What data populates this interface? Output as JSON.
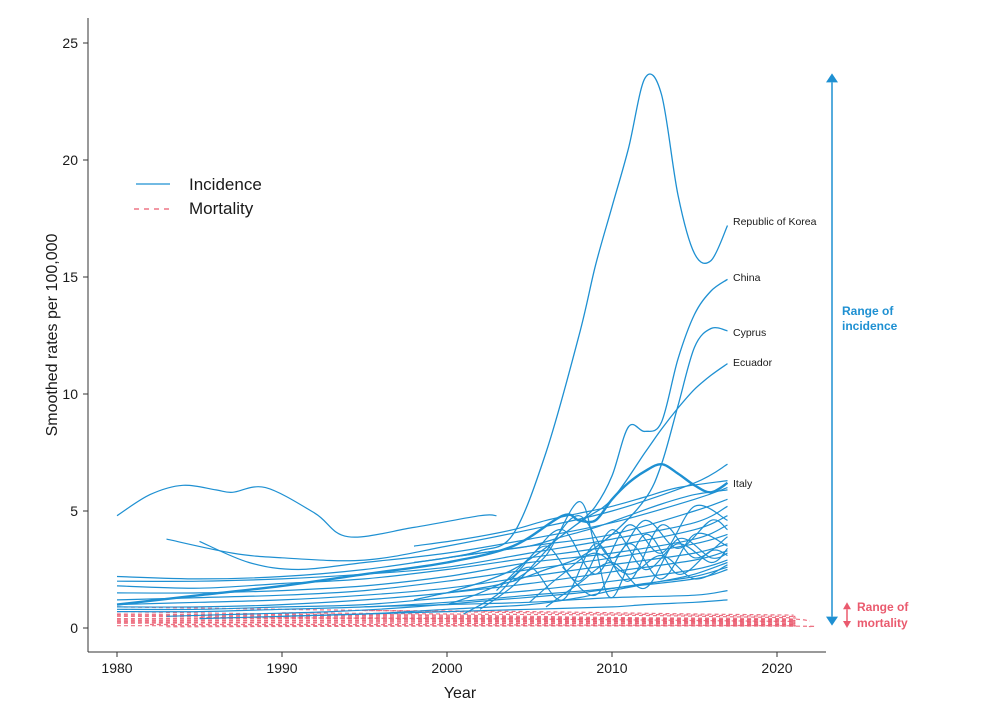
{
  "chart_data": {
    "type": "line",
    "xlabel": "Year",
    "ylabel": "Smoothed rates per 100,000",
    "xlim": [
      1979,
      2023
    ],
    "ylim": [
      -1,
      26
    ],
    "xticks": [
      1980,
      1990,
      2000,
      2010,
      2020
    ],
    "yticks": [
      0,
      5,
      10,
      15,
      20,
      25
    ],
    "legend": [
      {
        "label": "Incidence",
        "style": "solid",
        "color": "#1e90d2"
      },
      {
        "label": "Mortality",
        "style": "dashed",
        "color": "#ea5a6e"
      }
    ],
    "incidence_color": "#1e90d2",
    "mortality_color": "#ea5a6e",
    "labeled_series": [
      {
        "name": "Republic of Korea",
        "x": [
          1998,
          2000,
          2002,
          2004,
          2006,
          2008,
          2009,
          2010,
          2011,
          2012,
          2013,
          2014,
          2015,
          2016,
          2017
        ],
        "y": [
          2.8,
          3.0,
          3.3,
          4.0,
          7.5,
          12.5,
          15.5,
          18.0,
          20.5,
          23.5,
          22.8,
          18.5,
          16.0,
          15.7,
          17.2
        ]
      },
      {
        "name": "China",
        "x": [
          2008,
          2009,
          2010,
          2011,
          2012,
          2013,
          2014,
          2015,
          2016,
          2017
        ],
        "y": [
          4.5,
          5.2,
          6.5,
          8.6,
          8.4,
          8.8,
          11.5,
          13.4,
          14.4,
          14.9
        ]
      },
      {
        "name": "Cyprus",
        "x": [
          1998,
          2000,
          2002,
          2004,
          2006,
          2008,
          2010,
          2012,
          2013,
          2014,
          2015,
          2016,
          2017
        ],
        "y": [
          1.2,
          1.5,
          1.7,
          2.0,
          2.5,
          3.0,
          4.0,
          5.5,
          7.0,
          9.5,
          12.0,
          12.8,
          12.7
        ]
      },
      {
        "name": "Ecuador",
        "x": [
          2000,
          2004,
          2008,
          2010,
          2012,
          2013,
          2014,
          2015,
          2016,
          2017
        ],
        "y": [
          1.5,
          2.5,
          4.5,
          5.5,
          7.5,
          8.5,
          9.4,
          10.2,
          10.8,
          11.3
        ]
      },
      {
        "name": "Italy",
        "x": [
          1980,
          1985,
          1990,
          1995,
          2000,
          2004,
          2007,
          2008,
          2009,
          2010,
          2011,
          2012,
          2013,
          2014,
          2015,
          2016,
          2017
        ],
        "y": [
          1.0,
          1.4,
          1.8,
          2.3,
          2.8,
          3.5,
          4.8,
          4.6,
          4.6,
          5.5,
          6.2,
          6.7,
          7.0,
          6.6,
          6.1,
          5.8,
          6.2
        ]
      }
    ],
    "other_incidence_series": [
      {
        "x": [
          1980,
          1982,
          1984,
          1986,
          1987,
          1989,
          1992,
          1994,
          1998,
          2002,
          2003
        ],
        "y": [
          4.8,
          5.7,
          6.1,
          5.9,
          5.8,
          6.0,
          4.9,
          3.9,
          4.3,
          4.8,
          4.8
        ]
      },
      {
        "x": [
          1983,
          1987,
          1990,
          1995,
          2000,
          2005,
          2010,
          2015,
          2017
        ],
        "y": [
          3.8,
          3.2,
          3.0,
          2.9,
          3.5,
          4.2,
          5.0,
          6.2,
          7.0
        ]
      },
      {
        "x": [
          1985,
          1988,
          1991,
          1995,
          2000,
          2005,
          2010,
          2015,
          2017
        ],
        "y": [
          3.7,
          2.8,
          2.5,
          2.8,
          3.2,
          3.8,
          4.5,
          5.5,
          6.0
        ]
      },
      {
        "x": [
          1980,
          1985,
          1990,
          1995,
          2000,
          2005,
          2010,
          2015,
          2017
        ],
        "y": [
          2.2,
          2.1,
          2.2,
          2.5,
          3.0,
          3.5,
          4.0,
          5.0,
          5.5
        ]
      },
      {
        "x": [
          1980,
          1985,
          1990,
          1995,
          2000,
          2005,
          2010,
          2015,
          2017
        ],
        "y": [
          2.0,
          2.0,
          2.1,
          2.3,
          2.6,
          3.2,
          3.8,
          4.5,
          5.2
        ]
      },
      {
        "x": [
          1980,
          1985,
          1990,
          1995,
          2000,
          2005,
          2010,
          2015,
          2017
        ],
        "y": [
          1.8,
          1.7,
          1.9,
          2.1,
          2.5,
          3.0,
          3.5,
          4.2,
          4.8
        ]
      },
      {
        "x": [
          1980,
          1985,
          1990,
          1995,
          2000,
          2005,
          2010,
          2015,
          2017
        ],
        "y": [
          1.5,
          1.5,
          1.6,
          1.8,
          2.2,
          2.8,
          3.2,
          3.8,
          4.4
        ]
      },
      {
        "x": [
          1980,
          1985,
          1990,
          1995,
          2000,
          2005,
          2010,
          2015,
          2017
        ],
        "y": [
          1.2,
          1.3,
          1.4,
          1.6,
          2.0,
          2.5,
          3.0,
          3.6,
          4.0
        ]
      },
      {
        "x": [
          1980,
          1985,
          1990,
          1995,
          2000,
          2005,
          2010,
          2015,
          2017
        ],
        "y": [
          1.0,
          1.1,
          1.2,
          1.4,
          1.7,
          2.2,
          2.7,
          3.2,
          3.6
        ]
      },
      {
        "x": [
          1980,
          1985,
          1990,
          1995,
          2000,
          2005,
          2010,
          2015,
          2017
        ],
        "y": [
          0.9,
          0.9,
          1.0,
          1.2,
          1.5,
          1.9,
          2.4,
          2.9,
          3.3
        ]
      },
      {
        "x": [
          1980,
          1985,
          1990,
          1995,
          2000,
          2005,
          2010,
          2015,
          2017
        ],
        "y": [
          0.8,
          0.8,
          0.9,
          1.0,
          1.3,
          1.6,
          2.0,
          2.5,
          2.9
        ]
      },
      {
        "x": [
          1980,
          1985,
          1990,
          1995,
          2000,
          2005,
          2010,
          2015,
          2017
        ],
        "y": [
          0.7,
          0.7,
          0.8,
          0.9,
          1.1,
          1.4,
          1.7,
          2.1,
          2.5
        ]
      },
      {
        "x": [
          1983,
          1988,
          1993,
          1998,
          2003,
          2008,
          2012,
          2015,
          2017
        ],
        "y": [
          0.5,
          0.6,
          0.7,
          0.9,
          1.2,
          1.5,
          1.9,
          2.2,
          2.6
        ]
      },
      {
        "x": [
          1985,
          1990,
          1995,
          2000,
          2005,
          2008,
          2010,
          2013,
          2015,
          2017
        ],
        "y": [
          0.4,
          0.5,
          0.6,
          0.8,
          1.0,
          1.3,
          1.6,
          2.0,
          2.3,
          2.8
        ]
      },
      {
        "x": [
          1998,
          2001,
          2004,
          2006,
          2008,
          2010,
          2012,
          2014,
          2017
        ],
        "y": [
          3.5,
          3.8,
          4.2,
          4.6,
          4.9,
          5.2,
          5.6,
          6.0,
          6.3
        ]
      },
      {
        "x": [
          2000,
          2003,
          2005,
          2007,
          2009,
          2011,
          2013,
          2015,
          2017
        ],
        "y": [
          3.0,
          3.3,
          3.5,
          3.9,
          4.3,
          4.8,
          5.3,
          5.7,
          5.9
        ]
      },
      {
        "x": [
          2000,
          2002,
          2004,
          2006,
          2008,
          2010,
          2012,
          2014,
          2016,
          2017
        ],
        "y": [
          1.0,
          1.5,
          2.2,
          3.5,
          2.0,
          4.2,
          2.5,
          3.6,
          2.8,
          3.4
        ]
      },
      {
        "x": [
          2001,
          2003,
          2005,
          2007,
          2009,
          2011,
          2013,
          2015,
          2017
        ],
        "y": [
          0.6,
          1.4,
          2.6,
          1.2,
          3.6,
          2.0,
          4.4,
          3.0,
          3.9
        ]
      },
      {
        "x": [
          2002,
          2004,
          2006,
          2008,
          2010,
          2012,
          2014,
          2016,
          2017
        ],
        "y": [
          0.8,
          1.8,
          3.3,
          4.8,
          3.0,
          4.6,
          3.4,
          4.6,
          4.2
        ]
      },
      {
        "x": [
          2003,
          2005,
          2007,
          2009,
          2011,
          2013,
          2015,
          2017
        ],
        "y": [
          1.6,
          3.0,
          4.2,
          2.3,
          4.4,
          3.2,
          5.2,
          4.6
        ]
      },
      {
        "x": [
          2004,
          2006,
          2008,
          2009,
          2010,
          2012,
          2014,
          2016,
          2017
        ],
        "y": [
          2.0,
          3.1,
          5.4,
          3.4,
          1.3,
          4.0,
          2.3,
          3.3,
          3.1
        ]
      },
      {
        "x": [
          2005,
          2007,
          2009,
          2011,
          2013,
          2015,
          2017
        ],
        "y": [
          1.1,
          2.3,
          3.2,
          2.3,
          3.1,
          2.1,
          2.7
        ]
      },
      {
        "x": [
          2006,
          2008,
          2010,
          2012,
          2014,
          2016,
          2017
        ],
        "y": [
          0.9,
          1.9,
          2.8,
          1.7,
          3.8,
          3.0,
          3.2
        ]
      },
      {
        "x": [
          2007,
          2009,
          2011,
          2013,
          2015,
          2017
        ],
        "y": [
          2.6,
          1.4,
          3.6,
          2.1,
          4.0,
          3.5
        ]
      },
      {
        "x": [
          1990,
          1995,
          2000,
          2005,
          2010,
          2012,
          2015,
          2017
        ],
        "y": [
          0.5,
          0.6,
          0.7,
          0.8,
          0.9,
          1.0,
          1.1,
          1.2
        ]
      },
      {
        "x": [
          1995,
          2000,
          2005,
          2010,
          2015,
          2017
        ],
        "y": [
          0.9,
          1.0,
          1.1,
          1.3,
          1.4,
          1.6
        ]
      }
    ],
    "mortality_series": [
      {
        "x": [
          1980,
          1990,
          2000,
          2010,
          2020,
          2021
        ],
        "y": [
          0.9,
          0.8,
          0.7,
          0.6,
          0.5,
          0.5
        ]
      },
      {
        "x": [
          1980,
          1990,
          2000,
          2010,
          2020,
          2022
        ],
        "y": [
          0.7,
          0.6,
          0.55,
          0.45,
          0.4,
          0.3
        ]
      },
      {
        "x": [
          1980,
          1990,
          2000,
          2010,
          2020,
          2021
        ],
        "y": [
          0.6,
          0.55,
          0.5,
          0.4,
          0.35,
          0.3
        ]
      },
      {
        "x": [
          1980,
          1990,
          2000,
          2010,
          2020,
          2021
        ],
        "y": [
          0.5,
          0.45,
          0.4,
          0.35,
          0.3,
          0.25
        ]
      },
      {
        "x": [
          1980,
          1990,
          2000,
          2010,
          2020,
          2021
        ],
        "y": [
          0.4,
          0.4,
          0.35,
          0.3,
          0.25,
          0.2
        ]
      },
      {
        "x": [
          1980,
          1990,
          2000,
          2010,
          2020,
          2021
        ],
        "y": [
          0.3,
          0.3,
          0.28,
          0.25,
          0.2,
          0.18
        ]
      },
      {
        "x": [
          1980,
          1990,
          2000,
          2010,
          2020,
          2021
        ],
        "y": [
          0.2,
          0.22,
          0.2,
          0.18,
          0.15,
          0.12
        ]
      },
      {
        "x": [
          1982,
          1990,
          2000,
          2010,
          2020,
          2021
        ],
        "y": [
          0.15,
          0.15,
          0.14,
          0.12,
          0.1,
          0.08
        ]
      },
      {
        "x": [
          1980,
          1990,
          2000,
          2010,
          2020,
          2021
        ],
        "y": [
          0.55,
          0.5,
          0.45,
          0.4,
          0.35,
          0.32
        ]
      },
      {
        "x": [
          1985,
          1995,
          2005,
          2015,
          2021
        ],
        "y": [
          0.45,
          0.42,
          0.38,
          0.32,
          0.28
        ]
      },
      {
        "x": [
          1980,
          1990,
          2000,
          2010,
          2020
        ],
        "y": [
          0.35,
          0.33,
          0.3,
          0.28,
          0.25
        ]
      },
      {
        "x": [
          1980,
          1995,
          2010,
          2021
        ],
        "y": [
          0.25,
          0.22,
          0.2,
          0.15
        ]
      },
      {
        "x": [
          1990,
          2000,
          2010,
          2020,
          2021
        ],
        "y": [
          0.65,
          0.6,
          0.55,
          0.45,
          0.42
        ]
      },
      {
        "x": [
          1995,
          2005,
          2015,
          2021
        ],
        "y": [
          0.75,
          0.7,
          0.6,
          0.55
        ]
      },
      {
        "x": [
          1980,
          2000,
          2020,
          2022
        ],
        "y": [
          0.1,
          0.1,
          0.08,
          0.06
        ]
      },
      {
        "x": [
          1983,
          2000,
          2015,
          2021
        ],
        "y": [
          0.05,
          0.08,
          0.1,
          0.1
        ]
      }
    ],
    "annotations": {
      "incidence_range_label": [
        "Range of",
        "incidence"
      ],
      "incidence_range": [
        0.1,
        23.7
      ],
      "mortality_range_label": [
        "Range of",
        "mortality"
      ],
      "mortality_range": [
        0.0,
        1.1
      ]
    }
  }
}
